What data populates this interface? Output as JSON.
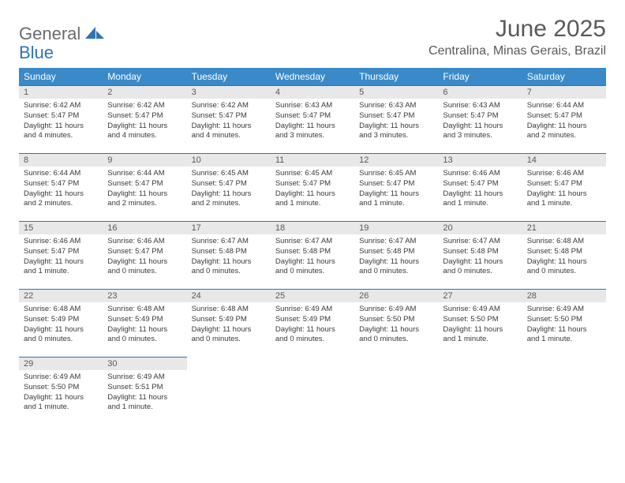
{
  "brand": {
    "word1": "General",
    "word2": "Blue"
  },
  "title": "June 2025",
  "location": "Centralina, Minas Gerais, Brazil",
  "colors": {
    "header_bg": "#3a8ac9",
    "accent": "#2f74b5",
    "daynum_bg": "#e8e8e8",
    "text": "#3a3a3a"
  },
  "weekdays": [
    "Sunday",
    "Monday",
    "Tuesday",
    "Wednesday",
    "Thursday",
    "Friday",
    "Saturday"
  ],
  "weeks": [
    [
      {
        "n": "1",
        "sr": "Sunrise: 6:42 AM",
        "ss": "Sunset: 5:47 PM",
        "dl": "Daylight: 11 hours and 4 minutes."
      },
      {
        "n": "2",
        "sr": "Sunrise: 6:42 AM",
        "ss": "Sunset: 5:47 PM",
        "dl": "Daylight: 11 hours and 4 minutes."
      },
      {
        "n": "3",
        "sr": "Sunrise: 6:42 AM",
        "ss": "Sunset: 5:47 PM",
        "dl": "Daylight: 11 hours and 4 minutes."
      },
      {
        "n": "4",
        "sr": "Sunrise: 6:43 AM",
        "ss": "Sunset: 5:47 PM",
        "dl": "Daylight: 11 hours and 3 minutes."
      },
      {
        "n": "5",
        "sr": "Sunrise: 6:43 AM",
        "ss": "Sunset: 5:47 PM",
        "dl": "Daylight: 11 hours and 3 minutes."
      },
      {
        "n": "6",
        "sr": "Sunrise: 6:43 AM",
        "ss": "Sunset: 5:47 PM",
        "dl": "Daylight: 11 hours and 3 minutes."
      },
      {
        "n": "7",
        "sr": "Sunrise: 6:44 AM",
        "ss": "Sunset: 5:47 PM",
        "dl": "Daylight: 11 hours and 2 minutes."
      }
    ],
    [
      {
        "n": "8",
        "sr": "Sunrise: 6:44 AM",
        "ss": "Sunset: 5:47 PM",
        "dl": "Daylight: 11 hours and 2 minutes."
      },
      {
        "n": "9",
        "sr": "Sunrise: 6:44 AM",
        "ss": "Sunset: 5:47 PM",
        "dl": "Daylight: 11 hours and 2 minutes."
      },
      {
        "n": "10",
        "sr": "Sunrise: 6:45 AM",
        "ss": "Sunset: 5:47 PM",
        "dl": "Daylight: 11 hours and 2 minutes."
      },
      {
        "n": "11",
        "sr": "Sunrise: 6:45 AM",
        "ss": "Sunset: 5:47 PM",
        "dl": "Daylight: 11 hours and 1 minute."
      },
      {
        "n": "12",
        "sr": "Sunrise: 6:45 AM",
        "ss": "Sunset: 5:47 PM",
        "dl": "Daylight: 11 hours and 1 minute."
      },
      {
        "n": "13",
        "sr": "Sunrise: 6:46 AM",
        "ss": "Sunset: 5:47 PM",
        "dl": "Daylight: 11 hours and 1 minute."
      },
      {
        "n": "14",
        "sr": "Sunrise: 6:46 AM",
        "ss": "Sunset: 5:47 PM",
        "dl": "Daylight: 11 hours and 1 minute."
      }
    ],
    [
      {
        "n": "15",
        "sr": "Sunrise: 6:46 AM",
        "ss": "Sunset: 5:47 PM",
        "dl": "Daylight: 11 hours and 1 minute."
      },
      {
        "n": "16",
        "sr": "Sunrise: 6:46 AM",
        "ss": "Sunset: 5:47 PM",
        "dl": "Daylight: 11 hours and 0 minutes."
      },
      {
        "n": "17",
        "sr": "Sunrise: 6:47 AM",
        "ss": "Sunset: 5:48 PM",
        "dl": "Daylight: 11 hours and 0 minutes."
      },
      {
        "n": "18",
        "sr": "Sunrise: 6:47 AM",
        "ss": "Sunset: 5:48 PM",
        "dl": "Daylight: 11 hours and 0 minutes."
      },
      {
        "n": "19",
        "sr": "Sunrise: 6:47 AM",
        "ss": "Sunset: 5:48 PM",
        "dl": "Daylight: 11 hours and 0 minutes."
      },
      {
        "n": "20",
        "sr": "Sunrise: 6:47 AM",
        "ss": "Sunset: 5:48 PM",
        "dl": "Daylight: 11 hours and 0 minutes."
      },
      {
        "n": "21",
        "sr": "Sunrise: 6:48 AM",
        "ss": "Sunset: 5:48 PM",
        "dl": "Daylight: 11 hours and 0 minutes."
      }
    ],
    [
      {
        "n": "22",
        "sr": "Sunrise: 6:48 AM",
        "ss": "Sunset: 5:49 PM",
        "dl": "Daylight: 11 hours and 0 minutes."
      },
      {
        "n": "23",
        "sr": "Sunrise: 6:48 AM",
        "ss": "Sunset: 5:49 PM",
        "dl": "Daylight: 11 hours and 0 minutes."
      },
      {
        "n": "24",
        "sr": "Sunrise: 6:48 AM",
        "ss": "Sunset: 5:49 PM",
        "dl": "Daylight: 11 hours and 0 minutes."
      },
      {
        "n": "25",
        "sr": "Sunrise: 6:49 AM",
        "ss": "Sunset: 5:49 PM",
        "dl": "Daylight: 11 hours and 0 minutes."
      },
      {
        "n": "26",
        "sr": "Sunrise: 6:49 AM",
        "ss": "Sunset: 5:50 PM",
        "dl": "Daylight: 11 hours and 0 minutes."
      },
      {
        "n": "27",
        "sr": "Sunrise: 6:49 AM",
        "ss": "Sunset: 5:50 PM",
        "dl": "Daylight: 11 hours and 1 minute."
      },
      {
        "n": "28",
        "sr": "Sunrise: 6:49 AM",
        "ss": "Sunset: 5:50 PM",
        "dl": "Daylight: 11 hours and 1 minute."
      }
    ],
    [
      {
        "n": "29",
        "sr": "Sunrise: 6:49 AM",
        "ss": "Sunset: 5:50 PM",
        "dl": "Daylight: 11 hours and 1 minute."
      },
      {
        "n": "30",
        "sr": "Sunrise: 6:49 AM",
        "ss": "Sunset: 5:51 PM",
        "dl": "Daylight: 11 hours and 1 minute."
      },
      null,
      null,
      null,
      null,
      null
    ]
  ]
}
